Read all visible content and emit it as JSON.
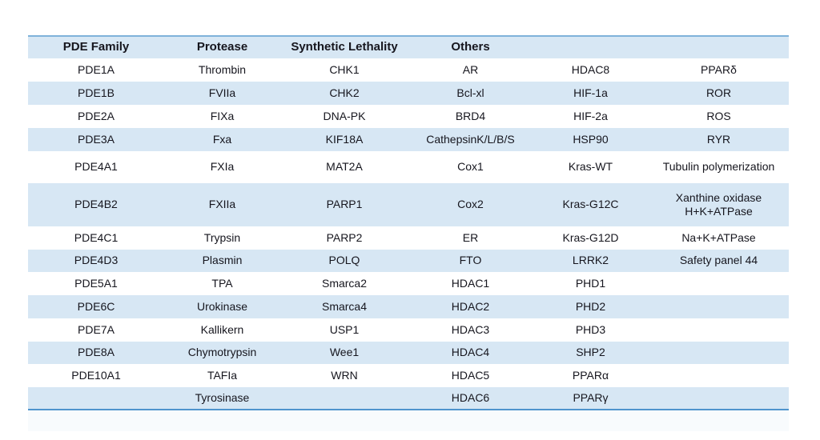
{
  "table": {
    "headers": [
      "PDE Family",
      "Protease",
      "Synthetic Lethality",
      "Others",
      "",
      ""
    ],
    "rows": [
      {
        "cells": [
          "PDE1A",
          "Thrombin",
          "CHK1",
          "AR",
          "HDAC8",
          "PPARδ"
        ]
      },
      {
        "cells": [
          "PDE1B",
          "FVIIa",
          "CHK2",
          "Bcl-xl",
          "HIF-1a",
          "ROR"
        ]
      },
      {
        "cells": [
          "PDE2A",
          "FIXa",
          "DNA-PK",
          "BRD4",
          "HIF-2a",
          "ROS"
        ]
      },
      {
        "cells": [
          "PDE3A",
          "Fxa",
          "KIF18A",
          "CathepsinK/L/B/S",
          "HSP90",
          "RYR"
        ]
      },
      {
        "cells": [
          "PDE4A1",
          "FXIa",
          "MAT2A",
          "Cox1",
          "Kras-WT",
          "Tubulin polymerization"
        ]
      },
      {
        "cells": [
          "PDE4B2",
          "FXIIa",
          "PARP1",
          "Cox2",
          "Kras-G12C",
          "Xanthine oxidase\nH+K+ATPase"
        ]
      },
      {
        "cells": [
          "PDE4C1",
          "Trypsin",
          "PARP2",
          "ER",
          "Kras-G12D",
          "Na+K+ATPase"
        ]
      },
      {
        "cells": [
          "PDE4D3",
          "Plasmin",
          "POLQ",
          "FTO",
          "LRRK2",
          "Safety panel 44"
        ]
      },
      {
        "cells": [
          "PDE5A1",
          "TPA",
          "Smarca2",
          "HDAC1",
          "PHD1",
          ""
        ]
      },
      {
        "cells": [
          "PDE6C",
          "Urokinase",
          "Smarca4",
          "HDAC2",
          "PHD2",
          ""
        ]
      },
      {
        "cells": [
          "PDE7A",
          "Kallikern",
          "USP1",
          "HDAC3",
          "PHD3",
          ""
        ]
      },
      {
        "cells": [
          "PDE8A",
          "Chymotrypsin",
          "Wee1",
          "HDAC4",
          "SHP2",
          ""
        ]
      },
      {
        "cells": [
          "PDE10A1",
          "TAFIa",
          "WRN",
          "HDAC5",
          "PPARα",
          ""
        ]
      },
      {
        "cells": [
          "",
          "Tyrosinase",
          "",
          "HDAC6",
          "PPARγ",
          ""
        ]
      }
    ]
  },
  "colors": {
    "row_alt": "#d7e7f4",
    "border_top": "#7fb2da",
    "border_bottom": "#4f94cd",
    "text": "#16161e"
  }
}
